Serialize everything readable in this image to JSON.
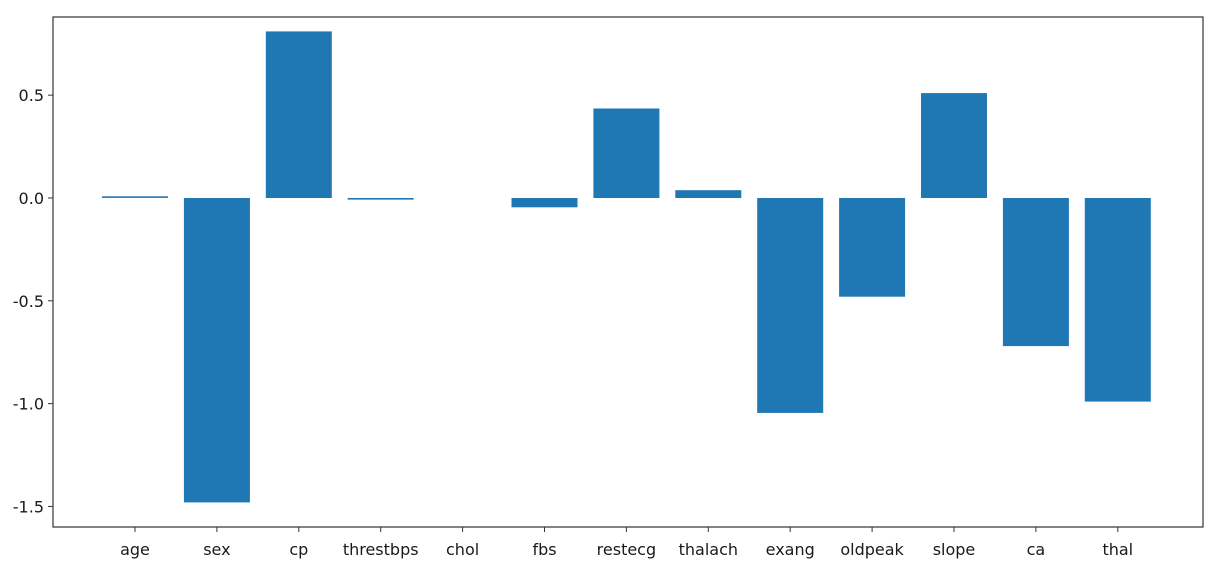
{
  "chart_data": {
    "type": "bar",
    "categories": [
      "age",
      "sex",
      "cp",
      "threstbps",
      "chol",
      "fbs",
      "restecg",
      "thalach",
      "exang",
      "oldpeak",
      "slope",
      "ca",
      "thal"
    ],
    "values": [
      0.008,
      -1.48,
      0.81,
      -0.008,
      0.0,
      -0.045,
      0.435,
      0.038,
      -1.045,
      -0.48,
      0.51,
      -0.72,
      -0.99
    ],
    "ylim": [
      -1.6,
      0.88
    ],
    "yticks": [
      0.5,
      0.0,
      -0.5,
      -1.0,
      -1.5
    ],
    "ytick_labels": [
      "0.5",
      "0.0",
      "-0.5",
      "-1.0",
      "-1.5"
    ],
    "bar_color": "#1f77b4",
    "grid": false,
    "title": "",
    "xlabel": "",
    "ylabel": ""
  }
}
